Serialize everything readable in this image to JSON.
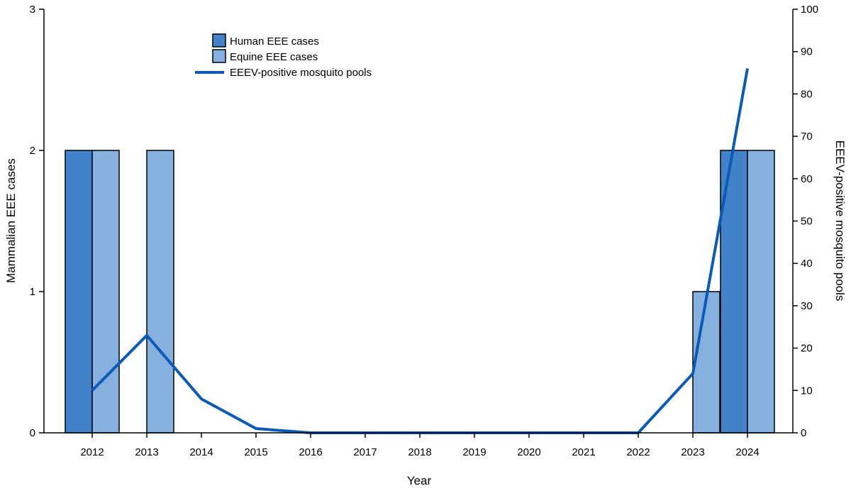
{
  "chart_data": {
    "type": "bar",
    "title": "",
    "xlabel": "Year",
    "ylabel": "Mammalian EEE cases",
    "ylabel_right": "EEEV-positive mosquito pools",
    "categories": [
      "2012",
      "2013",
      "2014",
      "2015",
      "2016",
      "2017",
      "2018",
      "2019",
      "2020",
      "2021",
      "2022",
      "2023",
      "2024"
    ],
    "ylim": [
      0,
      3
    ],
    "y_ticks": [
      "0",
      "1",
      "2",
      "3"
    ],
    "y2lim": [
      0,
      100
    ],
    "y2_ticks": [
      "0",
      "10",
      "20",
      "30",
      "40",
      "50",
      "60",
      "70",
      "80",
      "90",
      "100"
    ],
    "grid": false,
    "legend_position": "top-left",
    "series": [
      {
        "name": "Human EEE cases",
        "kind": "bar",
        "color": "#4282c8",
        "values": [
          2,
          0,
          0,
          0,
          0,
          0,
          0,
          0,
          0,
          0,
          0,
          0,
          2
        ]
      },
      {
        "name": "Equine EEE cases",
        "kind": "bar",
        "color": "#86b0de",
        "values": [
          2,
          2,
          0,
          0,
          0,
          0,
          0,
          0,
          0,
          0,
          0,
          1,
          2
        ]
      },
      {
        "name": "EEEV-positive mosquito pools",
        "kind": "line",
        "axis": "right",
        "color": "#0a5bb8",
        "values": [
          10,
          23,
          8,
          1,
          0,
          0,
          0,
          0,
          0,
          0,
          0,
          14,
          86
        ]
      }
    ]
  }
}
